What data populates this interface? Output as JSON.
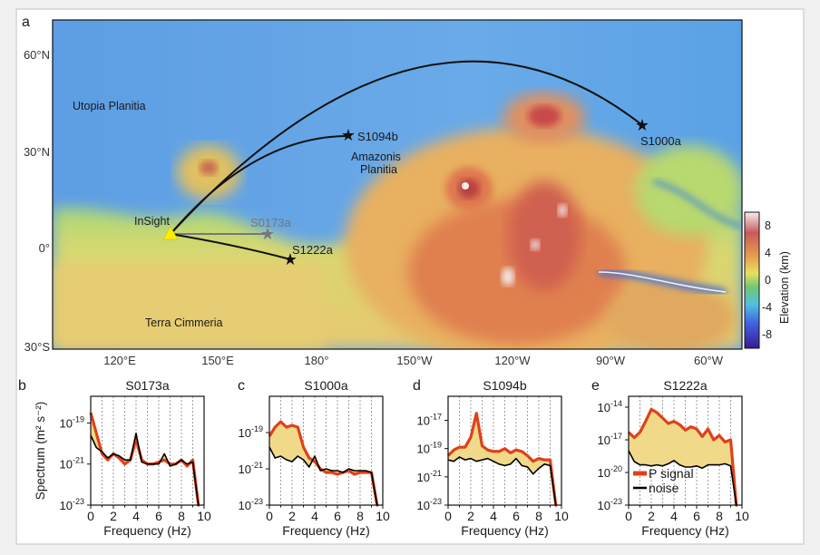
{
  "panel_letters": {
    "a": "a",
    "b": "b",
    "c": "c",
    "d": "d",
    "e": "e"
  },
  "map": {
    "lat_labels": [
      "60°N",
      "30°N",
      "0°",
      "30°S"
    ],
    "lon_labels": [
      "120°E",
      "150°E",
      "180°",
      "150°W",
      "120°W",
      "90°W",
      "60°W"
    ],
    "regions": {
      "utopia": "Utopia Planitia",
      "amazonis_1": "Amazonis",
      "amazonis_2": "Planitia",
      "cimmeria": "Terra Cimmeria"
    },
    "lander": "InSight",
    "events": [
      {
        "name": "S1094b",
        "color": "#111111"
      },
      {
        "name": "S1000a",
        "color": "#111111"
      },
      {
        "name": "S0173a",
        "color": "#777777"
      },
      {
        "name": "S1222a",
        "color": "#111111"
      }
    ],
    "colorbar": {
      "label": "Elevation (km)",
      "ticks": [
        "8",
        "4",
        "0",
        "-4",
        "-8"
      ],
      "range_km": [
        -9,
        9
      ]
    }
  },
  "chart_data": [
    {
      "type": "line",
      "title": "S0173a",
      "xlabel": "Frequency (Hz)",
      "ylabel": "Spectrum (m² s⁻²)",
      "xlim": [
        0,
        10
      ],
      "ylim_log10": [
        -23,
        -17.7
      ],
      "xticks": [
        "0",
        "2",
        "4",
        "6",
        "8",
        "10"
      ],
      "yticks_exp": [
        "-19",
        "-21",
        "-23"
      ],
      "ytick_base": "10",
      "x": [
        0,
        0.5,
        1,
        1.5,
        2,
        2.5,
        3,
        3.5,
        4,
        4.5,
        5,
        5.5,
        6,
        6.5,
        7,
        7.5,
        8,
        8.5,
        9,
        9.5
      ],
      "series": [
        {
          "name": "P signal",
          "color": "#e0401a",
          "log10_values": [
            -18.5,
            -19.5,
            -20.5,
            -20.8,
            -20.5,
            -20.7,
            -21,
            -20.8,
            -19.8,
            -20.8,
            -21,
            -21,
            -20.9,
            -20.8,
            -21,
            -21,
            -20.8,
            -21.1,
            -20.8,
            -23
          ]
        },
        {
          "name": "noise",
          "color": "#000000",
          "log10_values": [
            -19.6,
            -20.2,
            -20.4,
            -20.7,
            -20.5,
            -20.6,
            -20.8,
            -20.8,
            -19.5,
            -20.9,
            -21,
            -21,
            -21,
            -20.5,
            -21.1,
            -21,
            -20.8,
            -21,
            -20.9,
            -23
          ]
        }
      ]
    },
    {
      "type": "line",
      "title": "S1000a",
      "xlabel": "Frequency (Hz)",
      "ylabel": "",
      "xlim": [
        0,
        10
      ],
      "ylim_log10": [
        -23,
        -17
      ],
      "xticks": [
        "0",
        "2",
        "4",
        "6",
        "8",
        "10"
      ],
      "yticks_exp": [
        "-19",
        "-21",
        "-23"
      ],
      "ytick_base": "10",
      "x": [
        0,
        0.5,
        1,
        1.5,
        2,
        2.5,
        3,
        3.5,
        4,
        4.5,
        5,
        5.5,
        6,
        6.5,
        7,
        7.5,
        8,
        8.5,
        9,
        9.5
      ],
      "series": [
        {
          "name": "P signal",
          "color": "#e0401a",
          "log10_values": [
            -19.2,
            -18.7,
            -18.4,
            -18.7,
            -18.6,
            -18.7,
            -19.8,
            -20.4,
            -20.6,
            -21,
            -21.2,
            -21.2,
            -21.3,
            -21.2,
            -21.1,
            -21.3,
            -21.2,
            -21.2,
            -21.2,
            -23
          ]
        },
        {
          "name": "noise",
          "color": "#000000",
          "log10_values": [
            -19.8,
            -20.4,
            -20.3,
            -20.5,
            -20.6,
            -20.3,
            -20.5,
            -20.9,
            -20.3,
            -21.1,
            -21,
            -21.1,
            -21.1,
            -21.2,
            -21,
            -21.1,
            -21.1,
            -21.1,
            -21.2,
            -23
          ]
        }
      ]
    },
    {
      "type": "line",
      "title": "S1094b",
      "xlabel": "Frequency (Hz)",
      "ylabel": "",
      "xlim": [
        0,
        10
      ],
      "ylim_log10": [
        -23,
        -15.3
      ],
      "xticks": [
        "0",
        "2",
        "4",
        "6",
        "8",
        "10"
      ],
      "yticks_exp": [
        "-17",
        "-19",
        "-21",
        "-23"
      ],
      "ytick_base": "10",
      "x": [
        0,
        0.5,
        1,
        1.5,
        2,
        2.5,
        3,
        3.5,
        4,
        4.5,
        5,
        5.5,
        6,
        6.5,
        7,
        7.5,
        8,
        8.5,
        9,
        9.5
      ],
      "series": [
        {
          "name": "P signal",
          "color": "#e0401a",
          "log10_values": [
            -19.5,
            -19.1,
            -18.9,
            -18.9,
            -18.2,
            -16.5,
            -18.8,
            -19.1,
            -19.2,
            -19.2,
            -19,
            -19.3,
            -19.1,
            -19.2,
            -19.5,
            -19.9,
            -19.7,
            -19.8,
            -19.8,
            -23
          ]
        },
        {
          "name": "noise",
          "color": "#000000",
          "log10_values": [
            -19.8,
            -19.9,
            -19.6,
            -19.8,
            -19.7,
            -19.9,
            -19.8,
            -19.7,
            -19.9,
            -20.1,
            -20.2,
            -20.1,
            -19.7,
            -20.2,
            -20.3,
            -20.8,
            -20.4,
            -20.1,
            -20.2,
            -23
          ]
        }
      ]
    },
    {
      "type": "line",
      "title": "S1222a",
      "xlabel": "Frequency (Hz)",
      "ylabel": "",
      "xlim": [
        0,
        10
      ],
      "ylim_log10": [
        -23,
        -13
      ],
      "xticks": [
        "0",
        "2",
        "4",
        "6",
        "8",
        "10"
      ],
      "yticks_exp": [
        "-14",
        "-17",
        "-20",
        "-23"
      ],
      "ytick_base": "10",
      "legend": {
        "placement": "bottom-left",
        "signal": "P signal",
        "noise": "noise"
      },
      "x": [
        0,
        0.5,
        1,
        1.5,
        2,
        2.5,
        3,
        3.5,
        4,
        4.5,
        5,
        5.5,
        6,
        6.5,
        7,
        7.5,
        8,
        8.5,
        9,
        9.5
      ],
      "series": [
        {
          "name": "P signal",
          "color": "#e0401a",
          "log10_values": [
            -16.3,
            -16.8,
            -16.3,
            -15.3,
            -14.2,
            -14.5,
            -15,
            -15.5,
            -15.3,
            -15.6,
            -16.1,
            -15.8,
            -16,
            -16.7,
            -16,
            -17,
            -16.6,
            -17.2,
            -17,
            -23
          ]
        },
        {
          "name": "noise",
          "color": "#000000",
          "log10_values": [
            -18,
            -19,
            -19.3,
            -19.3,
            -19.4,
            -19.3,
            -19.4,
            -19.2,
            -18.9,
            -19.3,
            -19.5,
            -19.5,
            -19.4,
            -19.6,
            -19.3,
            -19.3,
            -19.3,
            -19.2,
            -19.4,
            -23
          ]
        }
      ]
    }
  ]
}
